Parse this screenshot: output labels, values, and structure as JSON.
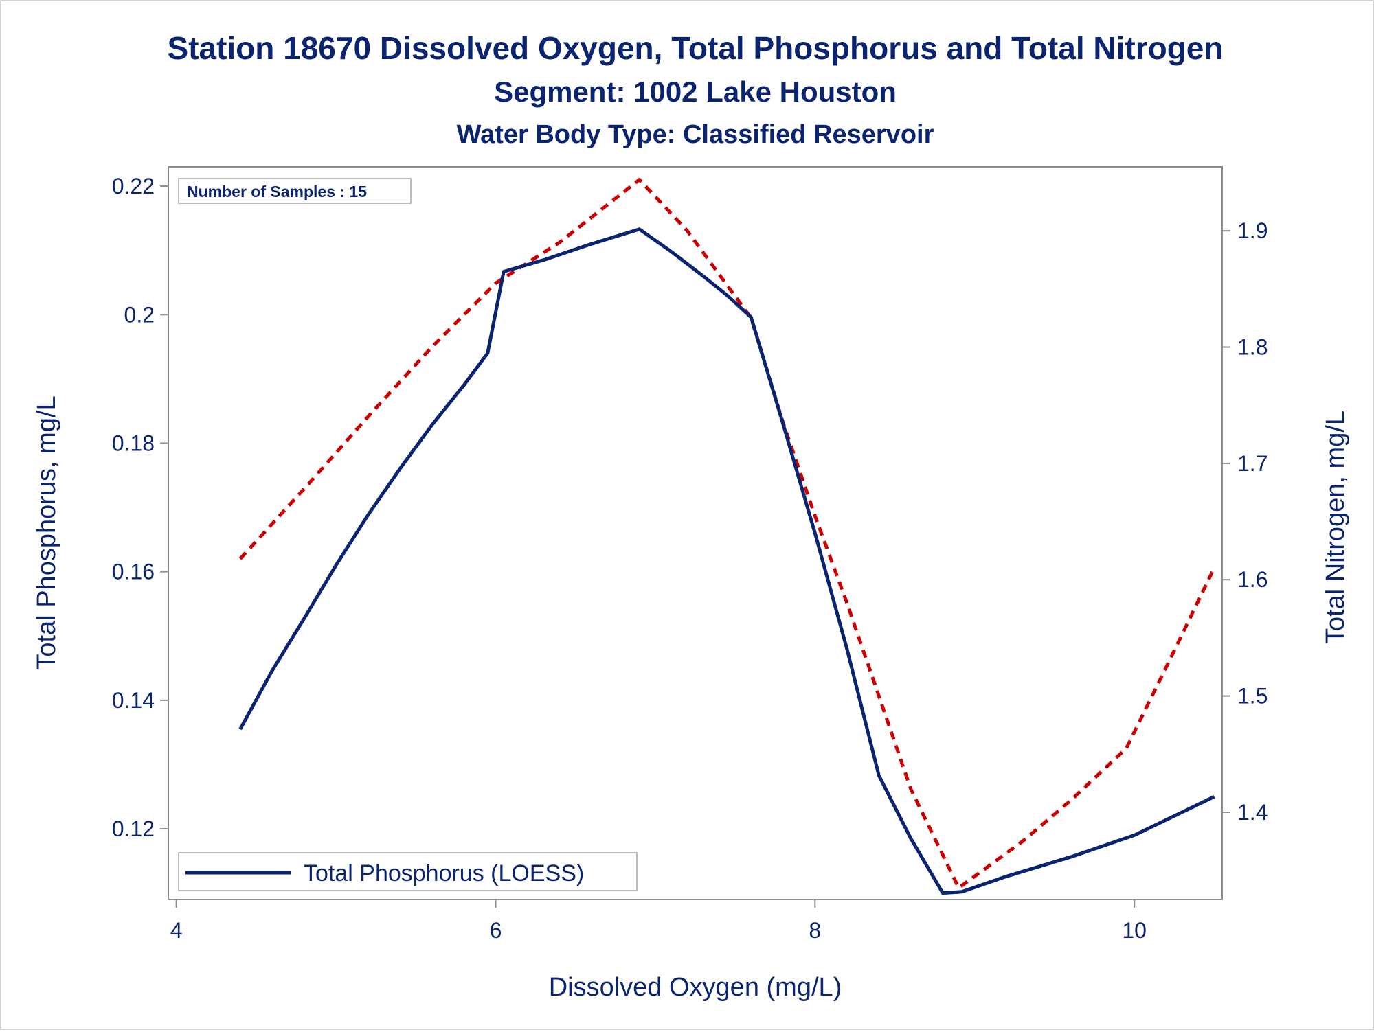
{
  "chart_data": {
    "type": "line",
    "title": "Station 18670  Dissolved Oxygen, Total Phosphorus and Total Nitrogen",
    "subtitle": "Segment: 1002  Lake Houston",
    "subtitle2": "Water Body Type: Classified Reservoir",
    "xlabel": "Dissolved Oxygen (mg/L)",
    "ylabel": "Total Phosphorus, mg/L",
    "y2label": "Total Nitrogen, mg/L",
    "xlim": [
      3.95,
      10.55
    ],
    "ylim": [
      0.109,
      0.223
    ],
    "y2lim": [
      1.325,
      1.955
    ],
    "x_ticks": [
      "4",
      "6",
      "8",
      "10"
    ],
    "y_ticks": [
      "0.12",
      "0.14",
      "0.16",
      "0.18",
      "0.2",
      "0.22"
    ],
    "y2_ticks": [
      "1.4",
      "1.5",
      "1.6",
      "1.7",
      "1.8",
      "1.9"
    ],
    "annotation": "Number of Samples : 15",
    "legend": "Total Phosphorus (LOESS)",
    "legend_position": "bottom-left inside",
    "series": [
      {
        "name": "Total Phosphorus (LOESS)",
        "axis": "left",
        "color": "#0a2470",
        "style": "solid",
        "x": [
          4.4,
          4.6,
          4.8,
          5.0,
          5.2,
          5.4,
          5.6,
          5.8,
          5.95,
          6.05,
          6.3,
          6.6,
          6.9,
          7.1,
          7.3,
          7.45,
          7.6,
          7.8,
          8.0,
          8.2,
          8.4,
          8.6,
          8.8,
          8.92,
          9.2,
          9.6,
          10.0,
          10.5
        ],
        "y": [
          0.1355,
          0.1446,
          0.1527,
          0.161,
          0.1688,
          0.176,
          0.1828,
          0.189,
          0.194,
          0.2067,
          0.2085,
          0.211,
          0.2133,
          0.2098,
          0.206,
          0.203,
          0.1996,
          0.183,
          0.166,
          0.148,
          0.1283,
          0.1185,
          0.11,
          0.1102,
          0.1126,
          0.1156,
          0.119,
          0.125
        ]
      },
      {
        "name": "Total Nitrogen",
        "axis": "right",
        "color": "#cc0000",
        "style": "dashed",
        "x": [
          4.4,
          4.8,
          5.2,
          5.6,
          6.0,
          6.4,
          6.9,
          7.2,
          7.6,
          7.8,
          8.0,
          8.2,
          8.4,
          8.6,
          8.9,
          9.3,
          9.6,
          9.95,
          10.2,
          10.5
        ],
        "y": [
          1.618,
          1.678,
          1.74,
          1.8,
          1.855,
          1.89,
          1.944,
          1.9,
          1.825,
          1.735,
          1.655,
          1.58,
          1.5,
          1.42,
          1.335,
          1.375,
          1.41,
          1.455,
          1.525,
          1.61
        ]
      }
    ]
  }
}
